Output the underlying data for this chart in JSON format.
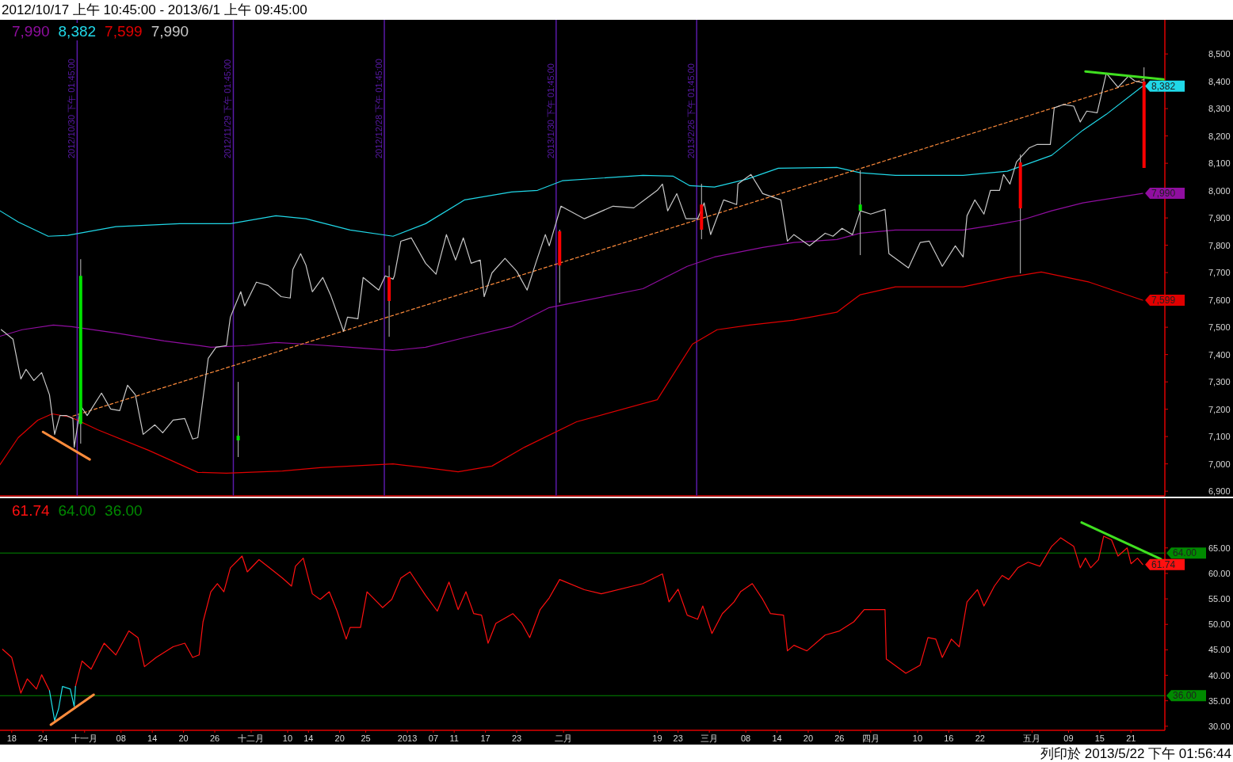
{
  "chart_data": [
    {
      "type": "line",
      "title": "2012/10/17 上午 10:45:00 - 2013/6/1 上午 09:45:00",
      "xlim": [
        "2012-10-15T18:00",
        "2013-05-27T12:00"
      ],
      "ylim": [
        6883,
        8625
      ],
      "yticks": [
        {
          "value": 6900,
          "label": "6,900"
        },
        {
          "value": 7000,
          "label": "7,000"
        },
        {
          "value": 7100,
          "label": "7,100"
        },
        {
          "value": 7200,
          "label": "7,200"
        },
        {
          "value": 7300,
          "label": "7,300"
        },
        {
          "value": 7400,
          "label": "7,400"
        },
        {
          "value": 7500,
          "label": "7,500"
        },
        {
          "value": 7600,
          "label": "7,600"
        },
        {
          "value": 7700,
          "label": "7,700"
        },
        {
          "value": 7800,
          "label": "7,800"
        },
        {
          "value": 7900,
          "label": "7,900"
        },
        {
          "value": 8000,
          "label": "8,000"
        },
        {
          "value": 8100,
          "label": "8,100"
        },
        {
          "value": 8200,
          "label": "8,200"
        },
        {
          "value": 8300,
          "label": "8,300"
        },
        {
          "value": 8400,
          "label": "8,400"
        },
        {
          "value": 8500,
          "label": "8,500"
        }
      ],
      "tick_labels": "y",
      "legend": "top left",
      "ref_lines": [
        {
          "axis": "x",
          "value": "2012-10-30T13:45",
          "label": "2012/10/30 下午 01:45:00",
          "color": "#5a1aa8"
        },
        {
          "axis": "x",
          "value": "2012-11-29T13:45",
          "label": "2012/11/29 下午 01:45:00",
          "color": "#5a1aa8"
        },
        {
          "axis": "x",
          "value": "2012-12-28T13:45",
          "label": "2012/12/28 下午 01:45:00",
          "color": "#5a1aa8"
        },
        {
          "axis": "x",
          "value": "2013-01-30T13:45",
          "label": "2013/1/30 下午 01:45:00",
          "color": "#5a1aa8"
        },
        {
          "axis": "x",
          "value": "2013-02-26T13:45",
          "label": "2013/2/26 下午 01:45:00",
          "color": "#5a1aa8"
        }
      ],
      "series": [
        {
          "name": "7,990",
          "color": "#900ea0",
          "x": [
            "2012-10-15T18:00",
            "2012-10-20T00:00",
            "2012-10-26T00:00",
            "2012-10-29T12:00",
            "2012-11-07T00:00",
            "2012-11-16T06:00",
            "2012-11-25T06:00",
            "2012-12-02T06:00",
            "2012-12-07T18:00",
            "2012-12-13T12:00",
            "2012-12-22T00:00",
            "2012-12-30T06:00",
            "2013-01-05T12:00",
            "2013-01-13T00:00",
            "2013-01-22T00:00",
            "2013-01-29T06:00",
            "2013-02-16T06:00",
            "2013-02-24T18:00",
            "2013-03-02T00:00",
            "2013-03-11T06:00",
            "2013-03-17T06:00",
            "2013-03-25T12:00",
            "2013-03-30T00:00",
            "2013-04-05T18:00",
            "2013-04-18T18:00",
            "2013-04-24T12:00",
            "2013-04-29T18:00",
            "2013-05-05T18:00",
            "2013-05-11T18:00",
            "2013-05-23T06:00"
          ],
          "values": [
            7467,
            7491,
            7508,
            7502,
            7479,
            7450,
            7427,
            7433,
            7444,
            7438,
            7427,
            7415,
            7427,
            7462,
            7502,
            7572,
            7641,
            7723,
            7757,
            7792,
            7810,
            7821,
            7844,
            7856,
            7856,
            7873,
            7891,
            7926,
            7955,
            7990
          ],
          "value_labels": [
            null,
            null,
            null,
            null,
            null,
            null,
            null,
            null,
            null,
            null,
            null,
            null,
            null,
            null,
            null,
            null,
            null,
            null,
            null,
            null,
            null,
            null,
            null,
            null,
            null,
            null,
            null,
            null,
            null,
            "7,990"
          ]
        },
        {
          "name": "8,382",
          "color": "#20d8e8",
          "x": [
            "2012-10-15T18:00",
            "2012-10-19T06:00",
            "2012-10-25T00:00",
            "2012-10-28T18:00",
            "2012-11-07T00:00",
            "2012-11-19T06:00",
            "2012-11-29T00:00",
            "2012-12-07T18:00",
            "2012-12-13T12:00",
            "2012-12-22T00:00",
            "2012-12-30T06:00",
            "2013-01-05T12:00",
            "2013-01-13T00:00",
            "2013-01-22T00:00",
            "2013-01-27T00:00",
            "2013-01-31T18:00",
            "2013-02-16T06:00",
            "2013-02-22T00:00",
            "2013-02-25T06:00",
            "2013-03-02T00:00",
            "2013-03-08T06:00",
            "2013-03-14T06:00",
            "2013-03-25T12:00",
            "2013-03-30T00:00",
            "2013-04-05T18:00",
            "2013-04-18T18:00",
            "2013-04-27T06:00",
            "2013-05-05T18:00",
            "2013-05-11T18:00",
            "2013-05-16T06:00",
            "2013-05-23T06:00"
          ],
          "values": [
            7926,
            7885,
            7833,
            7836,
            7868,
            7879,
            7879,
            7908,
            7897,
            7856,
            7833,
            7879,
            7966,
            7995,
            8001,
            8036,
            8056,
            8053,
            8018,
            8013,
            8042,
            8082,
            8085,
            8065,
            8056,
            8056,
            8071,
            8129,
            8221,
            8279,
            8382
          ],
          "value_labels": [
            null,
            null,
            null,
            null,
            null,
            null,
            null,
            null,
            null,
            null,
            null,
            null,
            null,
            null,
            null,
            null,
            null,
            null,
            null,
            null,
            null,
            null,
            null,
            null,
            null,
            null,
            null,
            null,
            null,
            null,
            "8,382"
          ]
        },
        {
          "name": "7,599",
          "color": "#e00000",
          "x": [
            "2012-10-15T18:00",
            "2012-10-19T06:00",
            "2012-10-23T00:00",
            "2012-10-25T18:00",
            "2012-10-29T06:00",
            "2012-11-03T12:00",
            "2012-11-13T06:00",
            "2012-11-22T18:00",
            "2012-11-28T06:00",
            "2012-12-09T00:00",
            "2012-12-16T06:00",
            "2012-12-30T06:00",
            "2013-01-05T12:00",
            "2013-01-11T18:00",
            "2013-01-18T06:00",
            "2013-01-24T12:00",
            "2013-02-03T12:00",
            "2013-02-19T00:00",
            "2013-02-23T06:00",
            "2013-02-25T18:00",
            "2013-03-02T12:00",
            "2013-03-08T18:00",
            "2013-03-17T06:00",
            "2013-03-25T12:00",
            "2013-03-27T12:00",
            "2013-03-30T00:00",
            "2013-04-05T18:00",
            "2013-04-18T18:00",
            "2013-04-27T06:00",
            "2013-05-03T18:00",
            "2013-05-13T00:00",
            "2013-05-23T06:00"
          ],
          "values": [
            6997,
            7096,
            7160,
            7183,
            7172,
            7125,
            7050,
            6969,
            6966,
            6974,
            6986,
            7000,
            6986,
            6971,
            6992,
            7061,
            7154,
            7235,
            7363,
            7438,
            7491,
            7508,
            7526,
            7555,
            7584,
            7619,
            7648,
            7648,
            7682,
            7702,
            7665,
            7599
          ],
          "value_labels": [
            null,
            null,
            null,
            null,
            null,
            null,
            null,
            null,
            null,
            null,
            null,
            null,
            null,
            null,
            null,
            null,
            null,
            null,
            null,
            null,
            null,
            null,
            null,
            null,
            null,
            null,
            null,
            null,
            null,
            null,
            null,
            "7,599"
          ]
        },
        {
          "type": "line",
          "color": "#ff8c3c",
          "line_style": "dashed",
          "x": [
            "2012-10-29T18:00",
            "2013-05-23T12:00"
          ],
          "values": [
            7175,
            8407
          ]
        },
        {
          "name": "7,990",
          "color": "#c8c8c8",
          "x": [
            "2012-10-16T00:00",
            "2012-10-18T06:00",
            "2012-10-19T18:00",
            "2012-10-20T18:00",
            "2012-10-22T06:00",
            "2012-10-23T18:00",
            "2012-10-25T06:00",
            "2012-10-26T06:00",
            "2012-10-27T06:00",
            "2012-10-28T12:00",
            "2012-10-29T18:00",
            "2012-10-30T00:00",
            "2012-10-31T06:00",
            "2012-11-01T12:00",
            "2012-11-04T06:00",
            "2012-11-06T00:00",
            "2012-11-07T18:00",
            "2012-11-09T06:00",
            "2012-11-10T18:00",
            "2012-11-12T06:00",
            "2012-11-14T12:00",
            "2012-11-16T00:00",
            "2012-11-18T00:00",
            "2012-11-20T06:00",
            "2012-11-21T18:00",
            "2012-11-22T18:00",
            "2012-11-24T18:00",
            "2012-11-26T06:00",
            "2012-11-28T06:00",
            "2012-11-29T00:00",
            "2012-12-01T00:00",
            "2012-12-01T18:00",
            "2012-12-04T00:00",
            "2012-12-06T06:00",
            "2012-12-08T18:00",
            "2012-12-10T12:00",
            "2012-12-11T00:00",
            "2012-12-12T12:00",
            "2012-12-13T12:00",
            "2012-12-14T18:00",
            "2012-12-16T18:00",
            "2012-12-18T06:00",
            "2012-12-20T18:00",
            "2012-12-21T12:00",
            "2012-12-23T12:00",
            "2012-12-24T12:00",
            "2012-12-27T12:00",
            "2012-12-28T18:00",
            "2012-12-30T06:00",
            "2012-12-30T12:00",
            "2012-12-31T18:00",
            "2013-01-02T18:00",
            "2013-01-05T12:00",
            "2013-01-07T12:00",
            "2013-01-09T12:00",
            "2013-01-11T06:00",
            "2013-01-12T18:00",
            "2013-01-14T06:00",
            "2013-01-16T00:00",
            "2013-01-16T18:00",
            "2013-01-18T06:00",
            "2013-01-20T18:00",
            "2013-01-23T00:00",
            "2013-01-25T00:00",
            "2013-01-26T18:00",
            "2013-01-28T12:00",
            "2013-01-29T06:00",
            "2013-01-31T12:00",
            "2013-02-05T00:00",
            "2013-02-10T12:00",
            "2013-02-14T12:00",
            "2013-02-19T00:00",
            "2013-02-20T00:00",
            "2013-02-21T00:00",
            "2013-02-22T18:00",
            "2013-02-24T12:00",
            "2013-02-26T18:00",
            "2013-02-28T00:00",
            "2013-03-01T06:00",
            "2013-03-03T18:00",
            "2013-03-06T06:00",
            "2013-03-06T12:00",
            "2013-03-09T00:00",
            "2013-03-11T06:00",
            "2013-03-14T18:00",
            "2013-03-16T00:00",
            "2013-03-17T06:00",
            "2013-03-20T06:00",
            "2013-03-23T06:00",
            "2013-03-24T18:00",
            "2013-03-26T12:00",
            "2013-03-28T12:00",
            "2013-03-30T00:00",
            "2013-04-01T00:00",
            "2013-04-03T18:00",
            "2013-04-04T12:00",
            "2013-04-08T06:00",
            "2013-04-10T12:00",
            "2013-04-12T06:00",
            "2013-04-14T18:00",
            "2013-04-17T06:00",
            "2013-04-18T18:00",
            "2013-04-19T12:00",
            "2013-04-21T00:00",
            "2013-04-22T18:00",
            "2013-04-24T00:00",
            "2013-04-25T18:00",
            "2013-04-26T12:00",
            "2013-04-27T18:00",
            "2013-04-29T00:00",
            "2013-05-01T12:00",
            "2013-05-03T00:00",
            "2013-05-05T12:00",
            "2013-05-06T06:00",
            "2013-05-08T00:00",
            "2013-05-10T00:00",
            "2013-05-11T06:00",
            "2013-05-12T12:00",
            "2013-05-14T12:00",
            "2013-05-16T06:00",
            "2013-05-18T12:00",
            "2013-05-20T12:00",
            "2013-05-21T18:00",
            "2013-05-23T06:00"
          ],
          "values": [
            7491,
            7456,
            7311,
            7346,
            7305,
            7334,
            7253,
            7108,
            7177,
            7177,
            7166,
            7061,
            7212,
            7177,
            7259,
            7201,
            7195,
            7288,
            7253,
            7108,
            7143,
            7114,
            7160,
            7166,
            7091,
            7096,
            7386,
            7427,
            7433,
            7537,
            7630,
            7578,
            7665,
            7653,
            7612,
            7607,
            7711,
            7769,
            7728,
            7630,
            7682,
            7618,
            7485,
            7537,
            7531,
            7682,
            7636,
            7688,
            7676,
            7688,
            7815,
            7827,
            7734,
            7694,
            7839,
            7746,
            7827,
            7734,
            7746,
            7612,
            7699,
            7752,
            7705,
            7636,
            7740,
            7839,
            7798,
            7943,
            7897,
            7943,
            7937,
            8001,
            8024,
            7926,
            7989,
            7897,
            7897,
            7955,
            7839,
            7966,
            7949,
            8024,
            8059,
            7989,
            7966,
            7815,
            7839,
            7798,
            7844,
            7833,
            7862,
            7839,
            7926,
            7914,
            7931,
            7769,
            7717,
            7810,
            7815,
            7723,
            7798,
            7757,
            7908,
            7966,
            7914,
            8001,
            8001,
            8059,
            8024,
            8105,
            8157,
            8169,
            8169,
            8303,
            8315,
            8309,
            8251,
            8291,
            8285,
            8430,
            8378,
            8419,
            8401,
            8395
          ]
        },
        {
          "type": "candlestick",
          "x": [
            "2012-10-31T06:00",
            "2012-11-30T12:00",
            "2012-12-29T12:00",
            "2013-01-31T06:00",
            "2013-02-27T12:00",
            "2013-03-30T00:00",
            "2013-04-29T18:00",
            "2013-05-23T12:00"
          ],
          "ohlc": [
            [
              7146,
              7749,
              7074,
              7688
            ],
            [
              7086,
              7300,
              7025,
              7103
            ],
            [
              7683,
              7726,
              7465,
              7596
            ],
            [
              7851,
              7857,
              7590,
              7726
            ],
            [
              7949,
              8025,
              7822,
              7857
            ],
            [
              7926,
              8074,
              7764,
              7949
            ],
            [
              8103,
              8132,
              7697,
              7935
            ],
            [
              8399,
              8451,
              8083,
              8083
            ]
          ],
          "colors": [
            "#00e000",
            "#00e000",
            "#ff0000",
            "#ff0000",
            "#ff0000",
            "#00e000",
            "#ff0000",
            "#ff0000"
          ]
        },
        {
          "type": "line",
          "color": "#ff8c3c",
          "line_style": "solid",
          "x": [
            "2012-10-24T00:00",
            "2012-11-02T00:00"
          ],
          "values": [
            7117,
            7016
          ]
        },
        {
          "type": "line",
          "color": "#40e020",
          "line_style": "solid",
          "x": [
            "2013-05-12T06:00",
            "2013-05-27T06:00"
          ],
          "values": [
            8436,
            8407
          ]
        }
      ]
    },
    {
      "type": "line",
      "xlim": [
        "2012-10-15T18:00",
        "2013-05-27T12:00"
      ],
      "ylim": [
        29.2,
        74.6
      ],
      "xticks": [
        {
          "value": "2012-10-18",
          "label": "18"
        },
        {
          "value": "2012-10-24",
          "label": "24"
        },
        {
          "value": "2012-11-01",
          "label": "十一月"
        },
        {
          "value": "2012-11-08",
          "label": "08"
        },
        {
          "value": "2012-11-14",
          "label": "14"
        },
        {
          "value": "2012-11-20",
          "label": "20"
        },
        {
          "value": "2012-11-26",
          "label": "26"
        },
        {
          "value": "2012-12-03",
          "label": "十二月"
        },
        {
          "value": "2012-12-10",
          "label": "10"
        },
        {
          "value": "2012-12-14",
          "label": "14"
        },
        {
          "value": "2012-12-20",
          "label": "20"
        },
        {
          "value": "2012-12-25",
          "label": "25"
        },
        {
          "value": "2013-01-02",
          "label": "2013"
        },
        {
          "value": "2013-01-07",
          "label": "07"
        },
        {
          "value": "2013-01-11",
          "label": "11"
        },
        {
          "value": "2013-01-17",
          "label": "17"
        },
        {
          "value": "2013-01-23",
          "label": "23"
        },
        {
          "value": "2013-02-01",
          "label": "二月"
        },
        {
          "value": "2013-02-19",
          "label": "19"
        },
        {
          "value": "2013-02-23",
          "label": "23"
        },
        {
          "value": "2013-03-01",
          "label": "三月"
        },
        {
          "value": "2013-03-08",
          "label": "08"
        },
        {
          "value": "2013-03-14",
          "label": "14"
        },
        {
          "value": "2013-03-20",
          "label": "20"
        },
        {
          "value": "2013-03-26",
          "label": "26"
        },
        {
          "value": "2013-04-01",
          "label": "四月"
        },
        {
          "value": "2013-04-10",
          "label": "10"
        },
        {
          "value": "2013-04-16",
          "label": "16"
        },
        {
          "value": "2013-04-22",
          "label": "22"
        },
        {
          "value": "2013-05-02",
          "label": "五月"
        },
        {
          "value": "2013-05-09",
          "label": "09"
        },
        {
          "value": "2013-05-15",
          "label": "15"
        },
        {
          "value": "2013-05-21",
          "label": "21"
        }
      ],
      "yticks": [
        {
          "value": 30,
          "label": "30.00"
        },
        {
          "value": 35,
          "label": "35.00"
        },
        {
          "value": 40,
          "label": "40.00"
        },
        {
          "value": 45,
          "label": "45.00"
        },
        {
          "value": 50,
          "label": "50.00"
        },
        {
          "value": 55,
          "label": "55.00"
        },
        {
          "value": 60,
          "label": "60.00"
        },
        {
          "value": 65,
          "label": "65.00"
        }
      ],
      "legend": "top left",
      "ref_lines": [
        {
          "axis": "y",
          "value": 64,
          "label": "64.00",
          "color": "#008a00"
        },
        {
          "axis": "y",
          "value": 36,
          "label": "36.00",
          "color": "#008a00"
        }
      ],
      "annotations": [
        "列印於 2013/5/22 下午 01:56:44"
      ],
      "series": [
        {
          "type": "line",
          "color": "#ff1010",
          "x": [
            "2012-10-16T06:00",
            "2012-10-18T00:00",
            "2012-10-19T18:00",
            "2012-10-21T00:00",
            "2012-10-22T18:00",
            "2012-10-23T18:00",
            "2012-10-25T06:00"
          ],
          "values": [
            45.1,
            43.5,
            36.5,
            39.3,
            37.3,
            40.1,
            37.0
          ]
        },
        {
          "name": "61.74",
          "color": "#ff1010",
          "x": [
            "2012-10-30T06:00",
            "2012-10-31T12:00",
            "2012-11-02T06:00",
            "2012-11-04T18:00",
            "2012-11-07T00:00",
            "2012-11-09T12:00",
            "2012-11-11T06:00",
            "2012-11-12T12:00",
            "2012-11-14T18:00",
            "2012-11-18T00:00",
            "2012-11-20T06:00",
            "2012-11-21T18:00",
            "2012-11-23T00:00",
            "2012-11-23T18:00",
            "2012-11-25T06:00",
            "2012-11-26T12:00",
            "2012-11-27T18:00",
            "2012-11-29T00:00",
            "2012-12-01T06:00",
            "2012-12-02T06:00",
            "2012-12-04T12:00",
            "2012-12-06T12:00",
            "2012-12-09T00:00",
            "2012-12-10T18:00",
            "2012-12-11T12:00",
            "2012-12-13T00:00",
            "2012-12-14T18:00",
            "2012-12-16T06:00",
            "2012-12-18T00:00",
            "2012-12-19T12:00",
            "2012-12-21T06:00",
            "2012-12-22T00:00",
            "2012-12-24T00:00",
            "2012-12-25T06:00",
            "2012-12-28T06:00",
            "2012-12-30T00:00",
            "2012-12-31T18:00",
            "2013-01-02T12:00",
            "2013-01-05T12:00",
            "2013-01-07T18:00",
            "2013-01-08T18:00",
            "2013-01-10T00:00",
            "2013-01-11T18:00",
            "2013-01-13T06:00",
            "2013-01-14T18:00",
            "2013-01-16T06:00",
            "2013-01-17T12:00",
            "2013-01-19T00:00",
            "2013-01-22T06:00",
            "2013-01-24T00:00",
            "2013-01-25T12:00",
            "2013-01-27T12:00",
            "2013-01-29T06:00",
            "2013-01-31T06:00",
            "2013-02-05T00:00",
            "2013-02-08T06:00",
            "2013-02-16T06:00",
            "2013-02-20T00:00",
            "2013-02-21T06:00",
            "2013-02-23T00:00",
            "2013-02-24T18:00",
            "2013-02-26T18:00",
            "2013-02-27T18:00",
            "2013-03-01T12:00",
            "2013-03-03T12:00",
            "2013-03-05T18:00",
            "2013-03-07T00:00",
            "2013-03-09T06:00",
            "2013-03-11T06:00",
            "2013-03-12T18:00",
            "2013-03-15T06:00",
            "2013-03-16T00:00",
            "2013-03-17T06:00",
            "2013-03-19T18:00",
            "2013-03-23T06:00",
            "2013-03-26T00:00",
            "2013-03-28T18:00",
            "2013-03-30T18:00",
            "2013-04-03T18:00",
            "2013-04-04T00:00",
            "2013-04-07T18:00",
            "2013-04-10T12:00",
            "2013-04-12T00:00",
            "2013-04-13T12:00",
            "2013-04-14T18:00",
            "2013-04-16T12:00",
            "2013-04-18T00:00",
            "2013-04-19T12:00",
            "2013-04-21T12:00",
            "2013-04-22T18:00",
            "2013-04-24T18:00",
            "2013-04-26T06:00",
            "2013-04-27T12:00",
            "2013-04-29T06:00",
            "2013-05-01T06:00",
            "2013-05-03T12:00",
            "2013-05-05T18:00",
            "2013-05-07T12:00",
            "2013-05-10T00:00",
            "2013-05-11T06:00",
            "2013-05-12T06:00",
            "2013-05-13T06:00",
            "2013-05-14T18:00",
            "2013-05-15T18:00",
            "2013-05-17T06:00",
            "2013-05-18T12:00",
            "2013-05-20T06:00",
            "2013-05-21T00:00",
            "2013-05-22T06:00",
            "2013-05-23T06:00"
          ],
          "values": [
            37.8,
            42.8,
            41.2,
            46.3,
            44.0,
            48.7,
            47.4,
            41.7,
            43.5,
            45.6,
            46.3,
            43.5,
            44.0,
            50.5,
            56.4,
            58.0,
            56.4,
            61.1,
            63.4,
            60.3,
            62.7,
            61.1,
            59.1,
            57.5,
            61.4,
            63.0,
            56.0,
            54.9,
            56.4,
            52.6,
            47.1,
            49.4,
            49.4,
            56.4,
            53.3,
            54.9,
            59.1,
            60.3,
            55.7,
            52.6,
            55.2,
            58.3,
            52.9,
            56.4,
            52.1,
            51.8,
            46.3,
            50.2,
            52.1,
            50.2,
            47.4,
            52.9,
            55.2,
            58.8,
            56.8,
            56.0,
            58.0,
            59.9,
            54.4,
            56.9,
            51.8,
            51.0,
            53.6,
            48.2,
            52.1,
            54.4,
            56.4,
            58.0,
            54.9,
            52.1,
            51.8,
            44.8,
            45.9,
            44.8,
            47.9,
            48.7,
            50.5,
            52.9,
            52.9,
            43.2,
            40.4,
            42.0,
            47.4,
            47.1,
            43.5,
            47.1,
            45.6,
            54.4,
            56.8,
            53.6,
            57.5,
            59.6,
            58.8,
            61.1,
            62.2,
            61.4,
            65.3,
            67.0,
            65.3,
            61.1,
            63.0,
            61.1,
            62.7,
            67.3,
            66.6,
            63.4,
            65.0,
            61.9,
            63.0,
            61.74
          ],
          "value_labels": [
            null,
            null,
            null,
            null,
            null,
            null,
            null,
            null,
            null,
            null,
            null,
            null,
            null,
            null,
            null,
            null,
            null,
            null,
            null,
            null,
            null,
            null,
            null,
            null,
            null,
            null,
            null,
            null,
            null,
            null,
            null,
            null,
            null,
            null,
            null,
            null,
            null,
            null,
            null,
            null,
            null,
            null,
            null,
            null,
            null,
            null,
            null,
            null,
            null,
            null,
            null,
            null,
            null,
            null,
            null,
            null,
            null,
            null,
            null,
            null,
            null,
            null,
            null,
            null,
            null,
            null,
            null,
            null,
            null,
            null,
            null,
            null,
            null,
            null,
            null,
            null,
            null,
            null,
            null,
            null,
            null,
            null,
            null,
            null,
            null,
            null,
            null,
            null,
            null,
            null,
            null,
            null,
            null,
            null,
            null,
            null,
            null,
            null,
            null,
            null,
            null,
            null,
            null,
            null,
            null,
            null,
            null,
            null,
            null,
            "61.74"
          ]
        },
        {
          "type": "line",
          "color": "#20e0e8",
          "x": [
            "2012-10-25T06:00",
            "2012-10-26T06:00",
            "2012-10-27T00:00",
            "2012-10-27T18:00",
            "2012-10-29T06:00",
            "2012-10-30T00:00",
            "2012-10-30T06:00"
          ],
          "values": [
            37.0,
            31.1,
            33.4,
            37.8,
            37.3,
            33.9,
            37.8
          ]
        },
        {
          "type": "line",
          "color": "#ff8c3c",
          "line_style": "solid",
          "x": [
            "2012-10-25T12:00",
            "2012-11-02T18:00"
          ],
          "values": [
            30.3,
            36.2
          ]
        },
        {
          "type": "line",
          "color": "#40e020",
          "line_style": "solid",
          "x": [
            "2013-05-11T12:00",
            "2013-05-26T18:00"
          ],
          "values": [
            70.0,
            62.8
          ]
        }
      ]
    }
  ]
}
